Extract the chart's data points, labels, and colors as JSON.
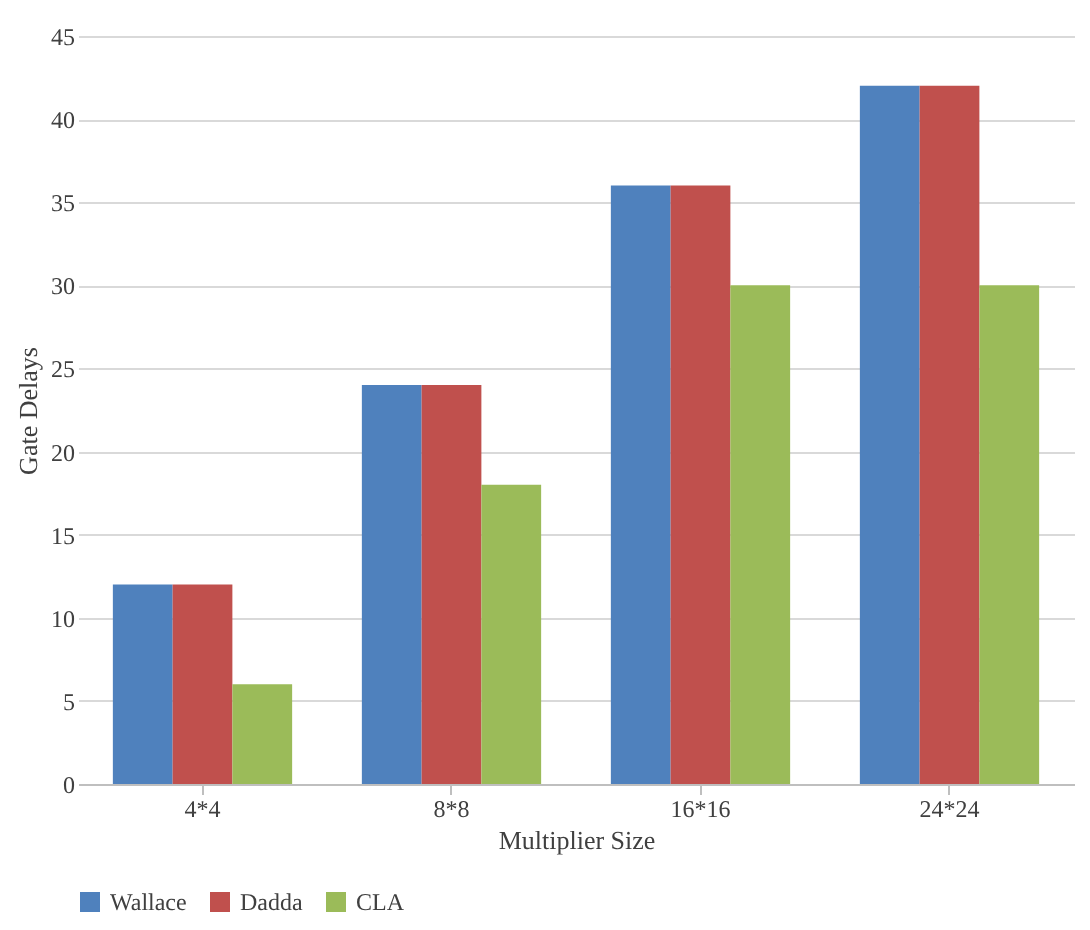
{
  "chart_data": {
    "type": "bar",
    "xlabel": "Multiplier Size",
    "ylabel": "Gate Delays",
    "categories": [
      "4*4",
      "8*8",
      "16*16",
      "24*24"
    ],
    "series": [
      {
        "name": "Wallace",
        "color": "#4f81bd",
        "values": [
          12,
          24,
          36,
          42
        ]
      },
      {
        "name": "Dadda",
        "color": "#c0504d",
        "values": [
          12,
          24,
          36,
          42
        ]
      },
      {
        "name": "CLA",
        "color": "#9bbb59",
        "values": [
          6,
          18,
          30,
          30
        ]
      }
    ],
    "ylim": [
      0,
      45
    ],
    "yticks": [
      0,
      5,
      10,
      15,
      20,
      25,
      30,
      35,
      40,
      45
    ],
    "grid": "y",
    "legend": "bottom"
  }
}
